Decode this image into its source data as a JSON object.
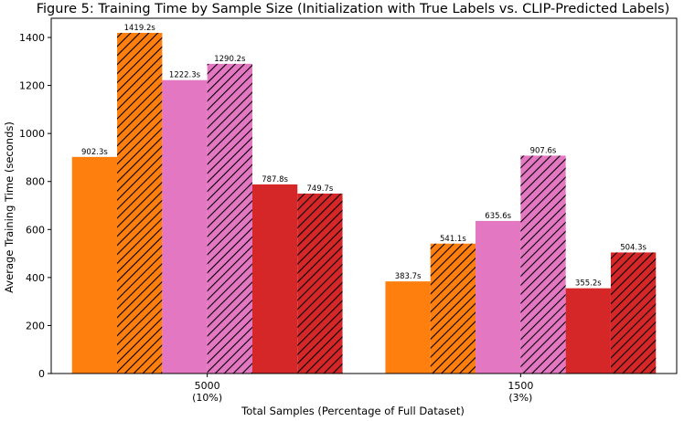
{
  "chart_data": {
    "type": "bar",
    "title": "Figure 5: Training Time by Sample Size (Initialization with True Labels vs. CLIP-Predicted Labels)",
    "xlabel": "Total Samples (Percentage of Full Dataset)",
    "ylabel": "Average Training Time (seconds)",
    "ylim": [
      0,
      1480
    ],
    "yticks": [
      0,
      200,
      400,
      600,
      800,
      1000,
      1200,
      1400
    ],
    "yticklabels": [
      "0",
      "200",
      "400",
      "600",
      "800",
      "1000",
      "1200",
      "1400"
    ],
    "categories": [
      {
        "line1": "5000",
        "line2": "(10%)"
      },
      {
        "line1": "1500",
        "line2": "(3%)"
      }
    ],
    "series": [
      {
        "values": [
          902.3,
          383.7
        ],
        "labels": [
          "902.3s",
          "383.7s"
        ],
        "color": "#ff7f0e",
        "hatched": false
      },
      {
        "values": [
          1419.2,
          541.1
        ],
        "labels": [
          "1419.2s",
          "541.1s"
        ],
        "color": "#ff7f0e",
        "hatched": true
      },
      {
        "values": [
          1222.3,
          635.6
        ],
        "labels": [
          "1222.3s",
          "635.6s"
        ],
        "color": "#e377c2",
        "hatched": false
      },
      {
        "values": [
          1290.2,
          907.6
        ],
        "labels": [
          "1290.2s",
          "907.6s"
        ],
        "color": "#e377c2",
        "hatched": true
      },
      {
        "values": [
          787.8,
          355.2
        ],
        "labels": [
          "787.8s",
          "355.2s"
        ],
        "color": "#d62728",
        "hatched": false
      },
      {
        "values": [
          749.7,
          504.3
        ],
        "labels": [
          "749.7s",
          "504.3s"
        ],
        "color": "#d62728",
        "hatched": true
      }
    ],
    "grid": false,
    "legend": "none"
  }
}
